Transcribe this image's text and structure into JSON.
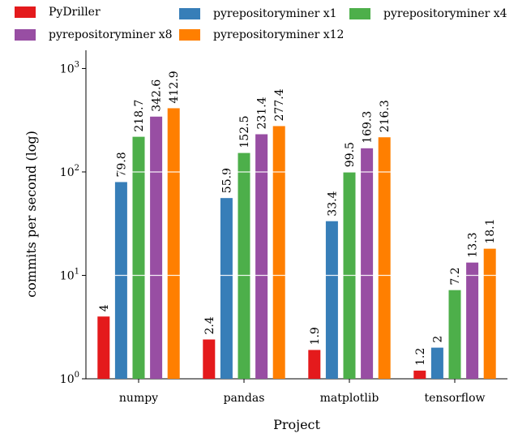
{
  "chart_data": {
    "type": "bar",
    "xlabel": "Project",
    "ylabel": "commits per second (log)",
    "yscale": "log",
    "ylim": [
      1,
      1500
    ],
    "yticks": [
      {
        "value": 1,
        "base": "10",
        "exp": "0"
      },
      {
        "value": 10,
        "base": "10",
        "exp": "1"
      },
      {
        "value": 100,
        "base": "10",
        "exp": "2"
      },
      {
        "value": 1000,
        "base": "10",
        "exp": "3"
      }
    ],
    "grid": true,
    "legend_position": "top",
    "categories": [
      "numpy",
      "pandas",
      "matplotlib",
      "tensorflow"
    ],
    "series": [
      {
        "name": "PyDriller",
        "color": "#e41a1c",
        "values": [
          4,
          2.4,
          1.9,
          1.2
        ],
        "labels": [
          "4",
          "2.4",
          "1.9",
          "1.2"
        ]
      },
      {
        "name": "pyrepositoryminer x1",
        "color": "#377eb8",
        "values": [
          79.8,
          55.9,
          33.4,
          2
        ],
        "labels": [
          "79.8",
          "55.9",
          "33.4",
          "2"
        ]
      },
      {
        "name": "pyrepositoryminer x4",
        "color": "#4daf4a",
        "values": [
          218.7,
          152.5,
          99.5,
          7.2
        ],
        "labels": [
          "218.7",
          "152.5",
          "99.5",
          "7.2"
        ]
      },
      {
        "name": "pyrepositoryminer x8",
        "color": "#984ea3",
        "values": [
          342.6,
          231.4,
          169.3,
          13.3
        ],
        "labels": [
          "342.6",
          "231.4",
          "169.3",
          "13.3"
        ]
      },
      {
        "name": "pyrepositoryminer x12",
        "color": "#ff7f00",
        "values": [
          412.9,
          277.4,
          216.3,
          18.1
        ],
        "labels": [
          "412.9",
          "277.4",
          "216.3",
          "18.1"
        ]
      }
    ]
  }
}
